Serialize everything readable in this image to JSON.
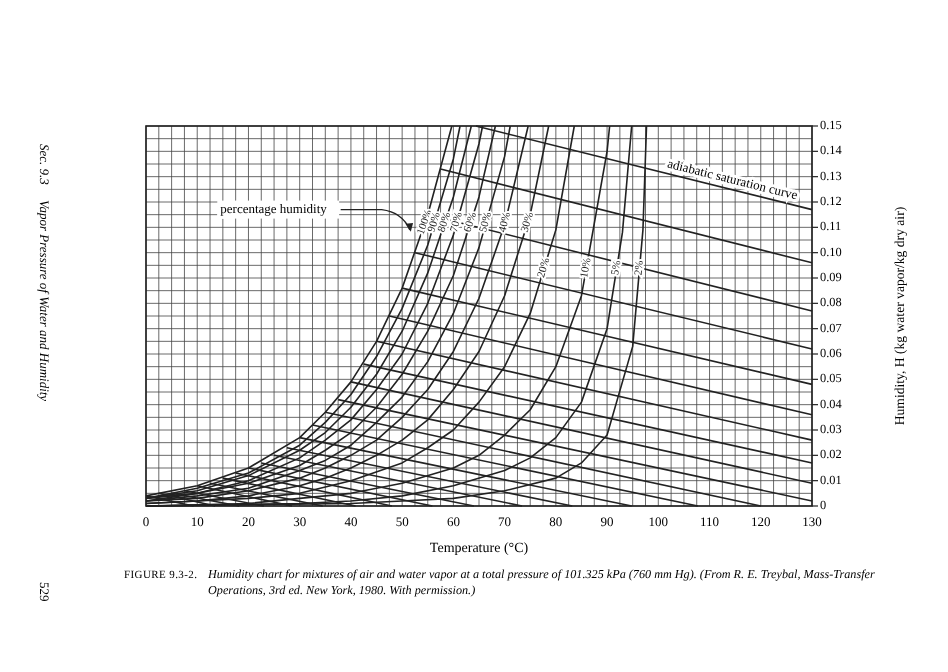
{
  "chart_data": {
    "type": "line",
    "xlabel": "Temperature (°C)",
    "ylabel": "Humidity, H (kg water vapor/kg dry air)",
    "xlim": [
      0,
      130
    ],
    "ylim": [
      0,
      0.15
    ],
    "xticks": [
      0,
      {
        "value": 2.5,
        "label": null
      },
      {
        "value": 5,
        "label": null
      },
      {
        "value": 7.5,
        "label": null
      },
      10,
      {
        "value": 12.5,
        "label": null
      },
      {
        "value": 15,
        "label": null
      },
      {
        "value": 17.5,
        "label": null
      },
      20,
      {
        "value": 22.5,
        "label": null
      },
      {
        "value": 25,
        "label": null
      },
      {
        "value": 27.5,
        "label": null
      },
      30,
      {
        "value": 32.5,
        "label": null
      },
      {
        "value": 35,
        "label": null
      },
      {
        "value": 37.5,
        "label": null
      },
      40,
      {
        "value": 42.5,
        "label": null
      },
      {
        "value": 45,
        "label": null
      },
      {
        "value": 47.5,
        "label": null
      },
      50,
      {
        "value": 52.5,
        "label": null
      },
      {
        "value": 55,
        "label": null
      },
      {
        "value": 57.5,
        "label": null
      },
      60,
      {
        "value": 62.5,
        "label": null
      },
      {
        "value": 65,
        "label": null
      },
      {
        "value": 67.5,
        "label": null
      },
      70,
      {
        "value": 72.5,
        "label": null
      },
      {
        "value": 75,
        "label": null
      },
      {
        "value": 77.5,
        "label": null
      },
      80,
      {
        "value": 82.5,
        "label": null
      },
      {
        "value": 85,
        "label": null
      },
      {
        "value": 87.5,
        "label": null
      },
      90,
      {
        "value": 92.5,
        "label": null
      },
      {
        "value": 95,
        "label": null
      },
      {
        "value": 97.5,
        "label": null
      },
      100,
      {
        "value": 102.5,
        "label": null
      },
      {
        "value": 105,
        "label": null
      },
      {
        "value": 107.5,
        "label": null
      },
      110,
      {
        "value": 112.5,
        "label": null
      },
      {
        "value": 115,
        "label": null
      },
      {
        "value": 117.5,
        "label": null
      },
      120,
      {
        "value": 122.5,
        "label": null
      },
      {
        "value": 125,
        "label": null
      },
      {
        "value": 127.5,
        "label": null
      },
      130
    ],
    "yticks": [
      0,
      {
        "value": 0.005,
        "label": null
      },
      0.01,
      {
        "value": 0.015,
        "label": null
      },
      0.02,
      {
        "value": 0.025,
        "label": null
      },
      0.03,
      {
        "value": 0.035,
        "label": null
      },
      0.04,
      {
        "value": 0.045,
        "label": null
      },
      0.05,
      {
        "value": 0.055,
        "label": null
      },
      0.06,
      {
        "value": 0.065,
        "label": null
      },
      0.07,
      {
        "value": 0.075,
        "label": null
      },
      0.08,
      {
        "value": 0.085,
        "label": null
      },
      0.09,
      {
        "value": 0.095,
        "label": null
      },
      {
        "value": 0.1,
        "label": "0.10"
      },
      {
        "value": 0.105,
        "label": null
      },
      0.11,
      {
        "value": 0.115,
        "label": null
      },
      0.12,
      {
        "value": 0.125,
        "label": null
      },
      0.13,
      {
        "value": 0.135,
        "label": null
      },
      0.14,
      {
        "value": 0.145,
        "label": null
      },
      0.15
    ],
    "grid": true,
    "series": [
      {
        "name": "100%",
        "color": "#222222",
        "x": [
          0,
          10,
          20,
          30,
          35,
          40,
          45,
          50,
          55,
          59.7
        ],
        "values": [
          0.004,
          0.008,
          0.015,
          0.027,
          0.037,
          0.049,
          0.065,
          0.086,
          0.115,
          0.15
        ]
      },
      {
        "name": "90%",
        "color": "#222222",
        "x": [
          0,
          10,
          20,
          30,
          35,
          40,
          45,
          50,
          55,
          60,
          61.3
        ],
        "values": [
          0.003,
          0.007,
          0.013,
          0.024,
          0.033,
          0.044,
          0.059,
          0.078,
          0.103,
          0.137,
          0.15
        ]
      },
      {
        "name": "80%",
        "color": "#222222",
        "x": [
          0,
          10,
          20,
          30,
          35,
          40,
          45,
          50,
          55,
          60,
          63.5
        ],
        "values": [
          0.003,
          0.006,
          0.012,
          0.022,
          0.029,
          0.039,
          0.052,
          0.069,
          0.092,
          0.122,
          0.15
        ]
      },
      {
        "name": "70%",
        "color": "#222222",
        "x": [
          0,
          10,
          20,
          30,
          35,
          40,
          45,
          50,
          55,
          60,
          65,
          65.7
        ],
        "values": [
          0.003,
          0.005,
          0.01,
          0.019,
          0.026,
          0.034,
          0.046,
          0.06,
          0.08,
          0.107,
          0.143,
          0.15
        ]
      },
      {
        "name": "60%",
        "color": "#222222",
        "x": [
          0,
          10,
          20,
          30,
          35,
          40,
          45,
          50,
          55,
          60,
          65,
          68.2
        ],
        "values": [
          0.002,
          0.005,
          0.009,
          0.016,
          0.022,
          0.029,
          0.039,
          0.052,
          0.069,
          0.091,
          0.122,
          0.15
        ]
      },
      {
        "name": "50%",
        "color": "#222222",
        "x": [
          0,
          10,
          20,
          30,
          35,
          40,
          45,
          50,
          55,
          60,
          65,
          70,
          71.1
        ],
        "values": [
          0.002,
          0.004,
          0.007,
          0.014,
          0.018,
          0.024,
          0.033,
          0.043,
          0.057,
          0.076,
          0.102,
          0.138,
          0.15
        ]
      },
      {
        "name": "40%",
        "color": "#222222",
        "x": [
          0,
          10,
          20,
          30,
          35,
          40,
          45,
          50,
          55,
          60,
          65,
          70,
          74.6
        ],
        "values": [
          0.002,
          0.003,
          0.006,
          0.011,
          0.015,
          0.02,
          0.026,
          0.035,
          0.046,
          0.061,
          0.082,
          0.111,
          0.15
        ]
      },
      {
        "name": "30%",
        "color": "#222222",
        "x": [
          0,
          10,
          20,
          30,
          35,
          40,
          45,
          50,
          55,
          60,
          65,
          70,
          75,
          78.6
        ],
        "values": [
          0.001,
          0.002,
          0.004,
          0.008,
          0.011,
          0.015,
          0.02,
          0.026,
          0.034,
          0.046,
          0.061,
          0.083,
          0.115,
          0.15
        ]
      },
      {
        "name": "20%",
        "color": "#222222",
        "x": [
          0,
          10,
          20,
          30,
          40,
          50,
          55,
          60,
          65,
          70,
          75,
          80,
          83.6
        ],
        "values": [
          0.001,
          0.002,
          0.003,
          0.005,
          0.01,
          0.017,
          0.023,
          0.03,
          0.041,
          0.055,
          0.076,
          0.109,
          0.15
        ]
      },
      {
        "name": "10%",
        "color": "#222222",
        "x": [
          0,
          20,
          30,
          40,
          50,
          60,
          65,
          70,
          75,
          80,
          85,
          90,
          90.5
        ],
        "values": [
          0,
          0.001,
          0.003,
          0.005,
          0.009,
          0.015,
          0.02,
          0.028,
          0.038,
          0.055,
          0.083,
          0.14,
          0.15
        ]
      },
      {
        "name": "5%",
        "color": "#222222",
        "x": [
          0,
          30,
          40,
          50,
          60,
          70,
          75,
          80,
          85,
          90,
          93,
          94.8
        ],
        "values": [
          0,
          0.001,
          0.002,
          0.004,
          0.008,
          0.014,
          0.019,
          0.027,
          0.041,
          0.07,
          0.108,
          0.15
        ]
      },
      {
        "name": "2%",
        "color": "#222222",
        "x": [
          0,
          40,
          50,
          60,
          70,
          80,
          85,
          90,
          95,
          97,
          97.7
        ],
        "values": [
          0,
          0.001,
          0.002,
          0.003,
          0.006,
          0.011,
          0.017,
          0.028,
          0.063,
          0.109,
          0.15
        ]
      },
      {
        "color": "#222222",
        "x": [
          0,
          9.3
        ],
        "values": [
          0.004,
          0
        ]
      },
      {
        "color": "#222222",
        "x": [
          2.5,
          13.5
        ],
        "values": [
          0.005,
          0
        ]
      },
      {
        "color": "#222222",
        "x": [
          5,
          18.2
        ],
        "values": [
          0.005,
          0
        ]
      },
      {
        "color": "#222222",
        "x": [
          7.5,
          23
        ],
        "values": [
          0.006,
          0
        ]
      },
      {
        "color": "#222222",
        "x": [
          10,
          28.5
        ],
        "values": [
          0.008,
          0
        ]
      },
      {
        "color": "#222222",
        "x": [
          12.5,
          34.5
        ],
        "values": [
          0.009,
          0
        ]
      },
      {
        "color": "#222222",
        "x": [
          15,
          40.9
        ],
        "values": [
          0.011,
          0
        ]
      },
      {
        "color": "#222222",
        "x": [
          17.5,
          48
        ],
        "values": [
          0.013,
          0
        ]
      },
      {
        "color": "#222222",
        "x": [
          20,
          55.9
        ],
        "values": [
          0.015,
          0
        ]
      },
      {
        "color": "#222222",
        "x": [
          22.5,
          64
        ],
        "values": [
          0.017,
          0
        ]
      },
      {
        "color": "#222222",
        "x": [
          25,
          73.4
        ],
        "values": [
          0.02,
          0
        ]
      },
      {
        "color": "#222222",
        "x": [
          27.5,
          83.2
        ],
        "values": [
          0.023,
          0
        ]
      },
      {
        "color": "#222222",
        "x": [
          30,
          94.8
        ],
        "values": [
          0.027,
          0
        ]
      },
      {
        "color": "#222222",
        "x": [
          32.5,
          107.7
        ],
        "values": [
          0.032,
          0
        ]
      },
      {
        "color": "#222222",
        "x": [
          35,
          120
        ],
        "values": [
          0.037,
          0
        ]
      },
      {
        "color": "#222222",
        "x": [
          37.5,
          130
        ],
        "values": [
          0.042,
          0.002
        ]
      },
      {
        "color": "#222222",
        "x": [
          40,
          130
        ],
        "values": [
          0.049,
          0.009
        ]
      },
      {
        "color": "#222222",
        "x": [
          42.5,
          130
        ],
        "values": [
          0.056,
          0.017
        ]
      },
      {
        "color": "#222222",
        "x": [
          45,
          130
        ],
        "values": [
          0.065,
          0.026
        ]
      },
      {
        "color": "#222222",
        "x": [
          47.5,
          130
        ],
        "values": [
          0.075,
          0.036
        ]
      },
      {
        "color": "#222222",
        "x": [
          50,
          130
        ],
        "values": [
          0.086,
          0.048
        ]
      },
      {
        "color": "#222222",
        "x": [
          52.5,
          130
        ],
        "values": [
          0.1,
          0.062
        ]
      },
      {
        "color": "#222222",
        "x": [
          55,
          130
        ],
        "values": [
          0.115,
          0.077
        ]
      },
      {
        "color": "#222222",
        "x": [
          57.5,
          130
        ],
        "values": [
          0.133,
          0.096
        ]
      },
      {
        "color": "#222222",
        "x": [
          64.4,
          130
        ],
        "values": [
          0.15,
          0.117
        ]
      }
    ],
    "annotations": [
      "percentage humidity",
      "adiabatic saturation curve",
      "FIGURE 9.3-2.",
      "Humidity chart for mixtures of air and water vapor at a total pressure of 101.325 kPa (760 mm Hg). (From R. E. Treybal, Mass-Transfer",
      "Operations, 3rd ed. New York, 1980. With permission.)",
      "Sec. 9.3",
      "Vapor Pressure of Water and Humidity",
      "529"
    ]
  }
}
